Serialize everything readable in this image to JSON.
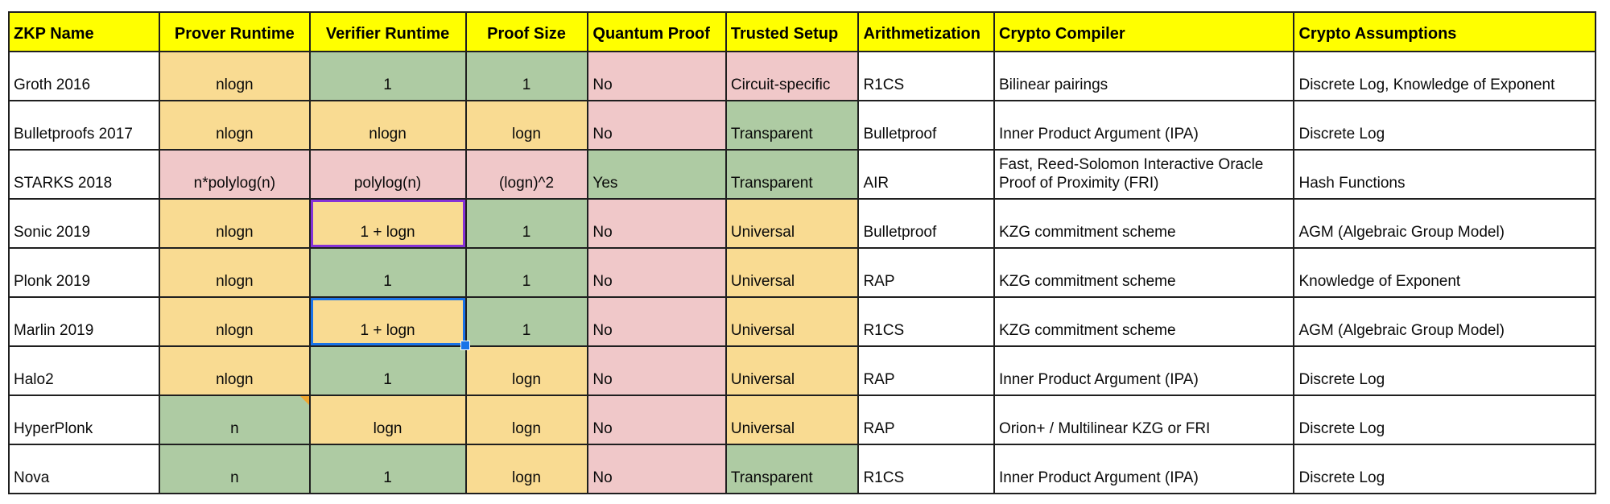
{
  "colors": {
    "header_bg": "#FFFF00",
    "cell_yellow": "#F9DB92",
    "cell_green": "#AECBA3",
    "cell_pink": "#F0C8C9",
    "cell_white": "#FFFFFF",
    "grid_line": "#1F1F1F",
    "text": "#0A0A0A",
    "selection_blue": "#1A73E8",
    "highlight_purple": "#8633D7",
    "note_orange": "#F0A732"
  },
  "table": {
    "columns": [
      {
        "key": "zkp-name",
        "label": "ZKP Name",
        "align": "left",
        "width": "9.5%"
      },
      {
        "key": "prover-runtime",
        "label": "Prover Runtime",
        "align": "center",
        "width": "9.5%"
      },
      {
        "key": "verifier-runtime",
        "label": "Verifier Runtime",
        "align": "center",
        "width": "9.8%"
      },
      {
        "key": "proof-size",
        "label": "Proof Size",
        "align": "center",
        "width": "7.7%"
      },
      {
        "key": "quantum-proof",
        "label": "Quantum Proof",
        "align": "left",
        "width": "8.7%"
      },
      {
        "key": "trusted-setup",
        "label": "Trusted Setup",
        "align": "left",
        "width": "8.35%"
      },
      {
        "key": "arithmetization",
        "label": "Arithmetization",
        "align": "left",
        "width": "8.55%"
      },
      {
        "key": "crypto-compiler",
        "label": "Crypto Compiler",
        "align": "left",
        "width": "18.9%"
      },
      {
        "key": "crypto-assumptions",
        "label": "Crypto Assumptions",
        "align": "left",
        "width": "19.0%"
      }
    ],
    "rows": [
      {
        "name": "groth-2016",
        "cells": [
          {
            "text": "Groth 2016",
            "bg": "white"
          },
          {
            "text": "nlogn",
            "bg": "yellow"
          },
          {
            "text": "1",
            "bg": "green"
          },
          {
            "text": "1",
            "bg": "green"
          },
          {
            "text": "No",
            "bg": "pink"
          },
          {
            "text": "Circuit-specific",
            "bg": "pink"
          },
          {
            "text": "R1CS",
            "bg": "white"
          },
          {
            "text": "Bilinear pairings",
            "bg": "white"
          },
          {
            "text": "Discrete Log, Knowledge of Exponent",
            "bg": "white"
          }
        ]
      },
      {
        "name": "bulletproofs-2017",
        "cells": [
          {
            "text": "Bulletproofs 2017",
            "bg": "white"
          },
          {
            "text": "nlogn",
            "bg": "yellow"
          },
          {
            "text": "nlogn",
            "bg": "yellow"
          },
          {
            "text": "logn",
            "bg": "yellow"
          },
          {
            "text": "No",
            "bg": "pink"
          },
          {
            "text": "Transparent",
            "bg": "green"
          },
          {
            "text": "Bulletproof",
            "bg": "white"
          },
          {
            "text": "Inner Product Argument (IPA)",
            "bg": "white"
          },
          {
            "text": "Discrete Log",
            "bg": "white"
          }
        ]
      },
      {
        "name": "starks-2018",
        "cells": [
          {
            "text": "STARKS 2018",
            "bg": "white"
          },
          {
            "text": "n*polylog(n)",
            "bg": "pink"
          },
          {
            "text": "polylog(n)",
            "bg": "pink"
          },
          {
            "text": "(logn)^2",
            "bg": "pink"
          },
          {
            "text": "Yes",
            "bg": "green"
          },
          {
            "text": "Transparent",
            "bg": "green"
          },
          {
            "text": "AIR",
            "bg": "white"
          },
          {
            "text": "Fast, Reed-Solomon Interactive Oracle Proof of Proximity (FRI)",
            "bg": "white"
          },
          {
            "text": "Hash Functions",
            "bg": "white"
          }
        ]
      },
      {
        "name": "sonic-2019",
        "cells": [
          {
            "text": "Sonic 2019",
            "bg": "white"
          },
          {
            "text": "nlogn",
            "bg": "yellow"
          },
          {
            "text": "1 + logn",
            "bg": "yellow",
            "frame": "purple"
          },
          {
            "text": "1",
            "bg": "green"
          },
          {
            "text": "No",
            "bg": "pink"
          },
          {
            "text": "Universal",
            "bg": "yellow"
          },
          {
            "text": "Bulletproof",
            "bg": "white"
          },
          {
            "text": "KZG commitment scheme",
            "bg": "white"
          },
          {
            "text": "AGM (Algebraic Group Model)",
            "bg": "white"
          }
        ]
      },
      {
        "name": "plonk-2019",
        "cells": [
          {
            "text": "Plonk 2019",
            "bg": "white"
          },
          {
            "text": "nlogn",
            "bg": "yellow"
          },
          {
            "text": "1",
            "bg": "green"
          },
          {
            "text": "1",
            "bg": "green"
          },
          {
            "text": "No",
            "bg": "pink"
          },
          {
            "text": "Universal",
            "bg": "yellow"
          },
          {
            "text": "RAP",
            "bg": "white"
          },
          {
            "text": "KZG commitment scheme",
            "bg": "white"
          },
          {
            "text": "Knowledge of Exponent",
            "bg": "white"
          }
        ]
      },
      {
        "name": "marlin-2019",
        "cells": [
          {
            "text": "Marlin 2019",
            "bg": "white"
          },
          {
            "text": "nlogn",
            "bg": "yellow"
          },
          {
            "text": "1 + logn",
            "bg": "yellow",
            "frame": "blue",
            "handle": true
          },
          {
            "text": "1",
            "bg": "green"
          },
          {
            "text": "No",
            "bg": "pink"
          },
          {
            "text": "Universal",
            "bg": "yellow"
          },
          {
            "text": "R1CS",
            "bg": "white"
          },
          {
            "text": "KZG commitment scheme",
            "bg": "white"
          },
          {
            "text": "AGM (Algebraic Group Model)",
            "bg": "white"
          }
        ]
      },
      {
        "name": "halo2",
        "cells": [
          {
            "text": "Halo2",
            "bg": "white"
          },
          {
            "text": "nlogn",
            "bg": "yellow"
          },
          {
            "text": "1",
            "bg": "green"
          },
          {
            "text": "logn",
            "bg": "yellow"
          },
          {
            "text": "No",
            "bg": "pink"
          },
          {
            "text": "Universal",
            "bg": "yellow"
          },
          {
            "text": "RAP",
            "bg": "white"
          },
          {
            "text": "Inner Product Argument (IPA)",
            "bg": "white"
          },
          {
            "text": "Discrete Log",
            "bg": "white"
          }
        ]
      },
      {
        "name": "hyperplonk",
        "cells": [
          {
            "text": "HyperPlonk",
            "bg": "white"
          },
          {
            "text": "n",
            "bg": "green",
            "note": true
          },
          {
            "text": "logn",
            "bg": "yellow"
          },
          {
            "text": "logn",
            "bg": "yellow"
          },
          {
            "text": "No",
            "bg": "pink"
          },
          {
            "text": "Universal",
            "bg": "yellow"
          },
          {
            "text": "RAP",
            "bg": "white"
          },
          {
            "text": "Orion+ / Multilinear KZG or FRI",
            "bg": "white"
          },
          {
            "text": "Discrete Log",
            "bg": "white"
          }
        ]
      },
      {
        "name": "nova",
        "cells": [
          {
            "text": "Nova",
            "bg": "white"
          },
          {
            "text": "n",
            "bg": "green"
          },
          {
            "text": "1",
            "bg": "green"
          },
          {
            "text": "logn",
            "bg": "yellow"
          },
          {
            "text": "No",
            "bg": "pink"
          },
          {
            "text": "Transparent",
            "bg": "green"
          },
          {
            "text": "R1CS",
            "bg": "white"
          },
          {
            "text": "Inner Product Argument (IPA)",
            "bg": "white"
          },
          {
            "text": "Discrete Log",
            "bg": "white"
          }
        ]
      }
    ]
  }
}
